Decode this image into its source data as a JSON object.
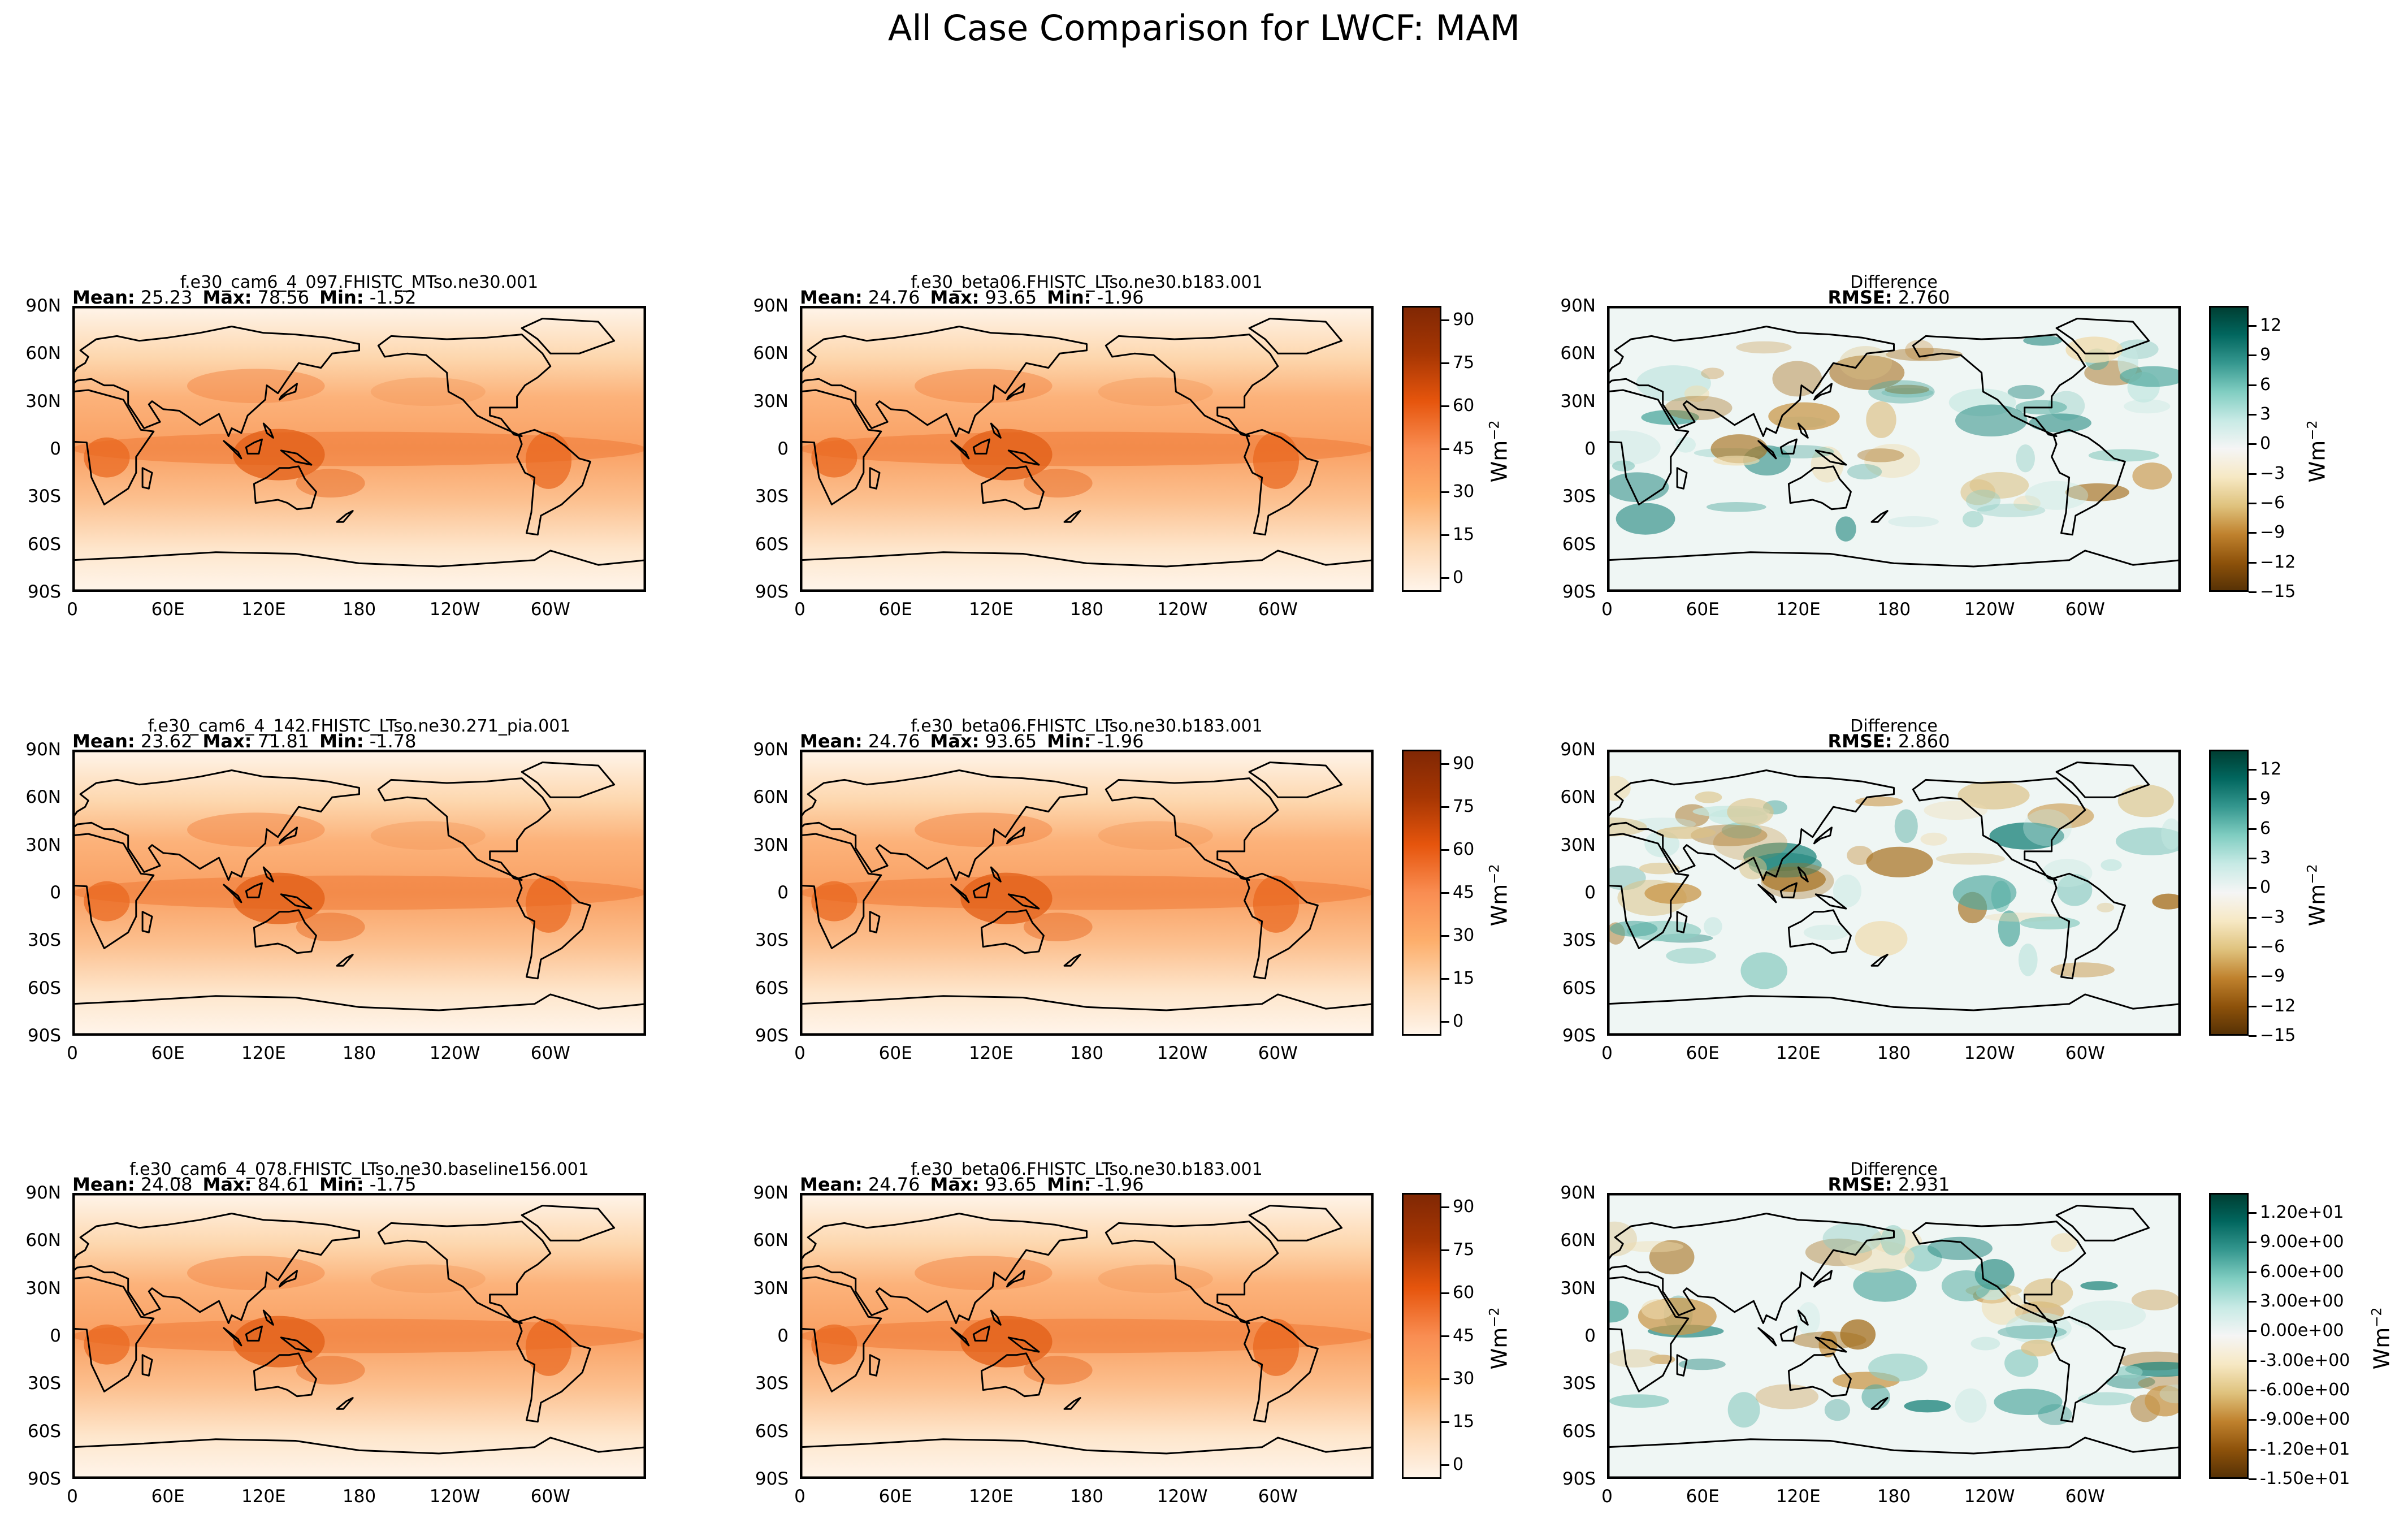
{
  "suptitle": "All Case Comparison for LWCF: MAM",
  "colorbar_label": "Wm",
  "colorbar_label_exponent": "−2",
  "lat_ticks": [
    "90N",
    "60N",
    "30N",
    "0",
    "30S",
    "60S",
    "90S"
  ],
  "lon_ticks": [
    "0",
    "60E",
    "120E",
    "180",
    "120W",
    "60W"
  ],
  "stat_labels": {
    "mean": "Mean",
    "max": "Max",
    "min": "Min",
    "rmse": "RMSE"
  },
  "colormaps": {
    "field": [
      "#fff5eb",
      "#fdd8b3",
      "#fdae6b",
      "#f98d52",
      "#e6550d",
      "#a63603",
      "#7f2704"
    ],
    "diff": [
      "#543005",
      "#8c510a",
      "#bf812d",
      "#dfc27d",
      "#f6e8c3",
      "#f5f5f5",
      "#c7eae5",
      "#80cdc1",
      "#35978f",
      "#01665e",
      "#003c30"
    ]
  },
  "chart_data": [
    {
      "type": "heatmap",
      "row": 0,
      "col": 0,
      "title": "f.e30_cam6_4_097.FHISTC_MTso.ne30.001",
      "stats": {
        "mean": "25.23",
        "max": "78.56",
        "min": "-1.52"
      },
      "xlabel": "",
      "ylabel": ""
    },
    {
      "type": "heatmap",
      "row": 0,
      "col": 1,
      "title": "f.e30_beta06.FHISTC_LTso.ne30.b183.001",
      "stats": {
        "mean": "24.76",
        "max": "93.65",
        "min": "-1.96"
      },
      "colorbar": {
        "ticks": [
          "90",
          "75",
          "60",
          "45",
          "30",
          "15",
          "0"
        ],
        "range": [
          -5,
          95
        ]
      }
    },
    {
      "type": "heatmap",
      "row": 0,
      "col": 2,
      "title": "Difference",
      "stats": {
        "rmse": "2.760"
      },
      "colorbar": {
        "ticks": [
          "12",
          "9",
          "6",
          "3",
          "0",
          "−3",
          "−6",
          "−9",
          "−12",
          "−15"
        ],
        "range": [
          -15,
          14
        ]
      }
    },
    {
      "type": "heatmap",
      "row": 1,
      "col": 0,
      "title": "f.e30_cam6_4_142.FHISTC_LTso.ne30.271_pia.001",
      "stats": {
        "mean": "23.62",
        "max": "71.81",
        "min": "-1.78"
      }
    },
    {
      "type": "heatmap",
      "row": 1,
      "col": 1,
      "title": "f.e30_beta06.FHISTC_LTso.ne30.b183.001",
      "stats": {
        "mean": "24.76",
        "max": "93.65",
        "min": "-1.96"
      },
      "colorbar": {
        "ticks": [
          "90",
          "75",
          "60",
          "45",
          "30",
          "15",
          "0"
        ],
        "range": [
          -5,
          95
        ]
      }
    },
    {
      "type": "heatmap",
      "row": 1,
      "col": 2,
      "title": "Difference",
      "stats": {
        "rmse": "2.860"
      },
      "colorbar": {
        "ticks": [
          "12",
          "9",
          "6",
          "3",
          "0",
          "−3",
          "−6",
          "−9",
          "−12",
          "−15"
        ],
        "range": [
          -15,
          14
        ]
      }
    },
    {
      "type": "heatmap",
      "row": 2,
      "col": 0,
      "title": "f.e30_cam6_4_078.FHISTC_LTso.ne30.baseline156.001",
      "stats": {
        "mean": "24.08",
        "max": "84.61",
        "min": "-1.75"
      }
    },
    {
      "type": "heatmap",
      "row": 2,
      "col": 1,
      "title": "f.e30_beta06.FHISTC_LTso.ne30.b183.001",
      "stats": {
        "mean": "24.76",
        "max": "93.65",
        "min": "-1.96"
      },
      "colorbar": {
        "ticks": [
          "90",
          "75",
          "60",
          "45",
          "30",
          "15",
          "0"
        ],
        "range": [
          -5,
          95
        ]
      }
    },
    {
      "type": "heatmap",
      "row": 2,
      "col": 2,
      "title": "Difference",
      "stats": {
        "rmse": "2.931"
      },
      "colorbar": {
        "ticks": [
          "1.20e+01",
          "9.00e+00",
          "6.00e+00",
          "3.00e+00",
          "0.00e+00",
          "-3.00e+00",
          "-6.00e+00",
          "-9.00e+00",
          "-1.20e+01",
          "-1.50e+01"
        ],
        "range": [
          -15,
          14
        ]
      }
    }
  ]
}
